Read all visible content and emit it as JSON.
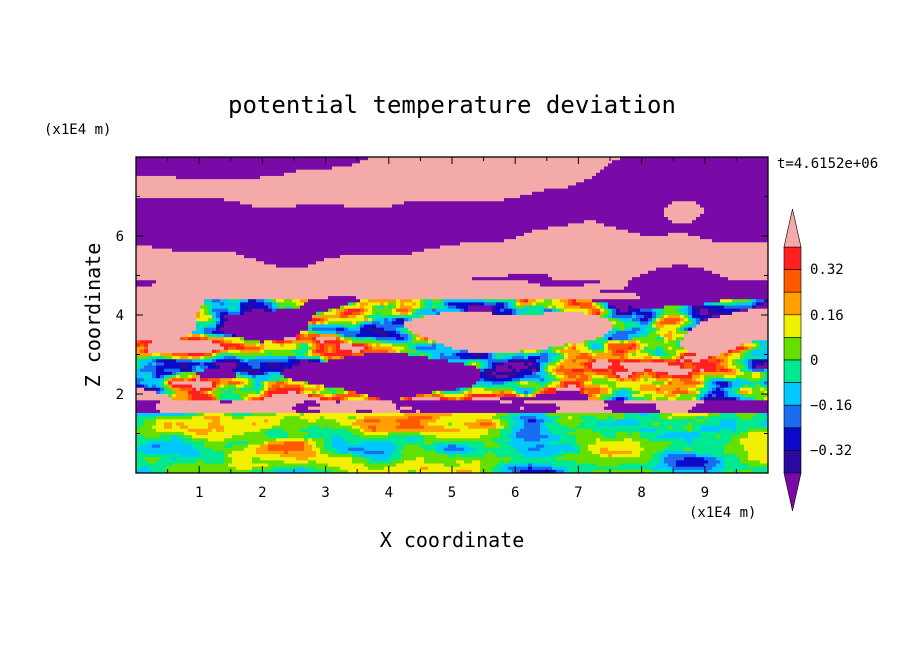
{
  "chart_data": {
    "type": "heatmap",
    "title": "potential temperature deviation",
    "xlabel": "X coordinate",
    "ylabel": "Z coordinate",
    "x_unit": "(x1E4 m)",
    "y_unit": "(x1E4 m)",
    "time_label": "t=4.6152e+06",
    "xlim": [
      0,
      10
    ],
    "ylim": [
      0,
      8
    ],
    "x_ticks": [
      "1",
      "2",
      "3",
      "4",
      "5",
      "6",
      "7",
      "8",
      "9"
    ],
    "y_ticks": [
      "2",
      "4",
      "6"
    ],
    "colorbar": {
      "tick_labels": [
        "0.32",
        "0.16",
        "0",
        "−0.16",
        "−0.32"
      ],
      "levels": [
        -0.4,
        -0.32,
        -0.24,
        -0.16,
        -0.08,
        0,
        0.08,
        0.16,
        0.24,
        0.32,
        0.4
      ],
      "colors": [
        "#7a0aa8",
        "#2a0aa0",
        "#0a0ac8",
        "#1a6cf0",
        "#00c8ff",
        "#00e890",
        "#64e000",
        "#f0f000",
        "#ffa000",
        "#ff5a00",
        "#ff2020",
        "#f5aaaa"
      ],
      "extend": "both"
    },
    "field_description": {
      "upper_layer": "alternating pink (>0.4) and purple (<-0.4) streaks",
      "middle_layer": "mixed multicolor small-scale eddies",
      "lower_layer": "mostly green/cyan with blue and orange eddies"
    }
  }
}
